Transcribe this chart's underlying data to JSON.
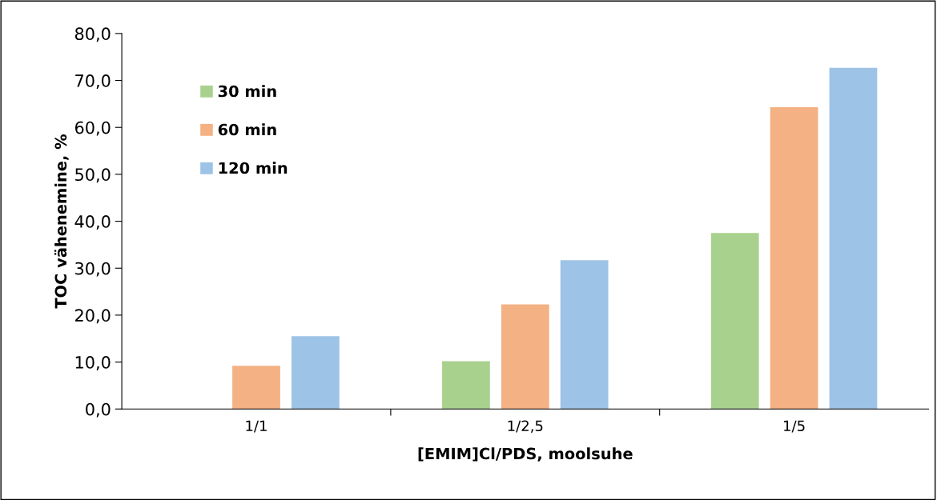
{
  "chart_data": {
    "type": "bar",
    "xlabel": "[EMIM]Cl/PDS, moolsuhe",
    "ylabel": "TOC vähenemine, %",
    "categories": [
      "1/1",
      "1/2,5",
      "1/5"
    ],
    "series": [
      {
        "name": "30 min",
        "color": "#a9d18e",
        "values": [
          0,
          10.2,
          37.5
        ]
      },
      {
        "name": "60 min",
        "color": "#f4b183",
        "values": [
          9.2,
          22.3,
          64.3
        ]
      },
      {
        "name": "120 min",
        "color": "#9dc3e6",
        "values": [
          15.5,
          31.7,
          72.7
        ]
      }
    ],
    "ylim": [
      0,
      80
    ],
    "yticks": [
      {
        "value": 0,
        "label": "0,0"
      },
      {
        "value": 10,
        "label": "10,0"
      },
      {
        "value": 20,
        "label": "20,0"
      },
      {
        "value": 30,
        "label": "30,0"
      },
      {
        "value": 40,
        "label": "40,0"
      },
      {
        "value": 50,
        "label": "50,0"
      },
      {
        "value": 60,
        "label": "60,0"
      },
      {
        "value": 70,
        "label": "70,0"
      },
      {
        "value": 80,
        "label": "80,0"
      }
    ],
    "grid": false,
    "legend": "top left"
  }
}
